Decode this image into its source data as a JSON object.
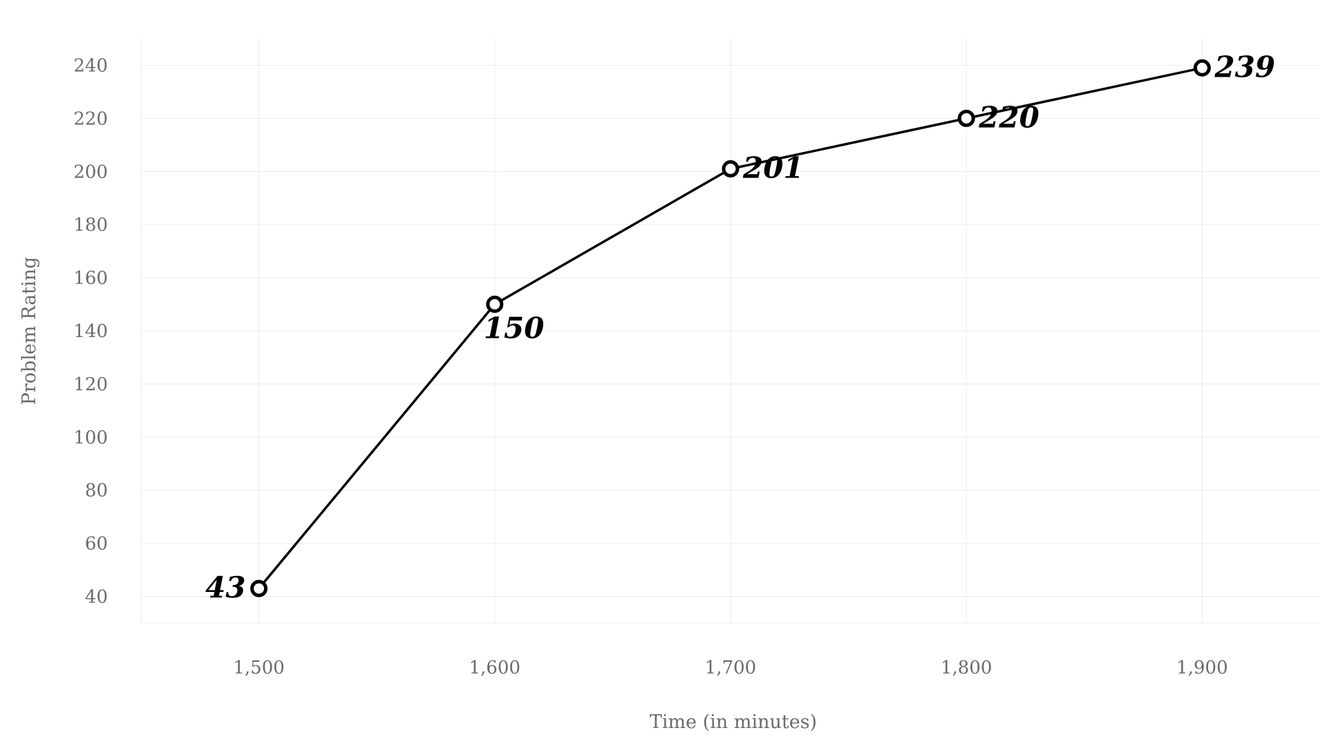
{
  "chart_data": {
    "type": "line",
    "title": "",
    "xlabel": "Time (in minutes)",
    "ylabel": "Problem Rating",
    "x": [
      1500,
      1600,
      1700,
      1800,
      1900
    ],
    "x_tick_labels": [
      "1,500",
      "1,600",
      "1,700",
      "1,800",
      "1,900"
    ],
    "y_ticks": [
      40,
      60,
      80,
      100,
      120,
      140,
      160,
      180,
      200,
      220,
      240
    ],
    "xlim": [
      1450,
      1950
    ],
    "ylim": [
      30,
      250
    ],
    "grid": true,
    "legend": "none",
    "series": [
      {
        "values": [
          43,
          150,
          201,
          220,
          239
        ],
        "data_labels": [
          "43",
          "150",
          "201",
          "220",
          "239"
        ],
        "label_positions": [
          "left",
          "below",
          "right",
          "right",
          "right"
        ],
        "color": "#000000",
        "marker": "hollow-circle"
      }
    ]
  }
}
